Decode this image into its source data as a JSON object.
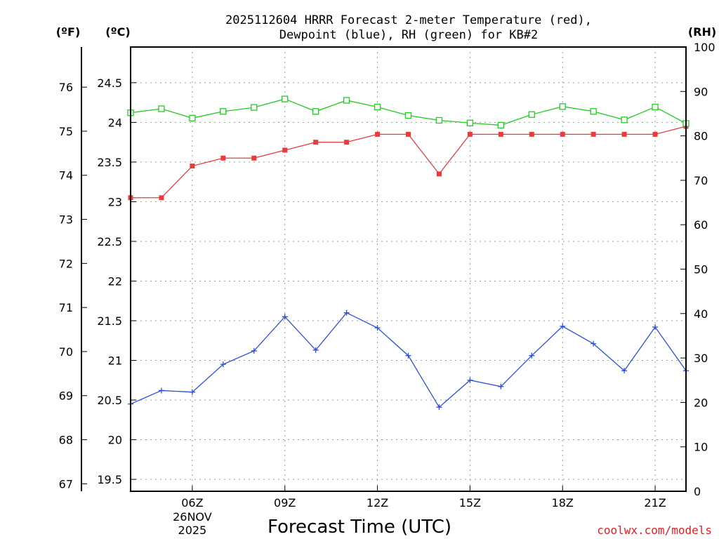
{
  "chart_data": {
    "type": "line",
    "title": "2025112604 HRRR Forecast 2-meter Temperature (red),",
    "subtitle": "Dewpoint (blue), RH (green) for KB#2",
    "xlabel": "Forecast Time (UTC)",
    "units": {
      "fahrenheit": "(ºF)",
      "celsius": "(ºC)",
      "rh": "(RH)"
    },
    "x_hours": [
      4,
      5,
      6,
      7,
      8,
      9,
      10,
      11,
      12,
      13,
      14,
      15,
      16,
      17,
      18,
      19,
      20,
      21,
      22
    ],
    "xlim": [
      4,
      22
    ],
    "x_ticks": [
      {
        "hour": 6,
        "label": "06Z",
        "date": "26NOV",
        "year": "2025"
      },
      {
        "hour": 9,
        "label": "09Z"
      },
      {
        "hour": 12,
        "label": "12Z"
      },
      {
        "hour": 15,
        "label": "15Z"
      },
      {
        "hour": 18,
        "label": "18Z"
      },
      {
        "hour": 21,
        "label": "21Z"
      }
    ],
    "celsius_axis": {
      "ylim": [
        19.35,
        24.95
      ],
      "ticks": [
        "19.5",
        "20",
        "20.5",
        "21",
        "21.5",
        "22",
        "22.5",
        "23",
        "23.5",
        "24",
        "24.5"
      ]
    },
    "fahrenheit_axis": {
      "ticks": [
        "67",
        "68",
        "69",
        "70",
        "71",
        "72",
        "73",
        "74",
        "75",
        "76"
      ]
    },
    "rh_axis": {
      "ylim": [
        0,
        100
      ],
      "ticks": [
        "0",
        "10",
        "20",
        "30",
        "40",
        "50",
        "60",
        "70",
        "80",
        "90",
        "100"
      ]
    },
    "series": [
      {
        "name": "Temperature",
        "axis": "celsius",
        "color": "#e83c3c",
        "marker": "square-filled",
        "values": [
          23.05,
          23.05,
          23.45,
          23.55,
          23.55,
          23.65,
          23.75,
          23.75,
          23.85,
          23.85,
          23.35,
          23.85,
          23.85,
          23.85,
          23.85,
          23.85,
          23.85,
          23.85,
          23.95
        ]
      },
      {
        "name": "Dewpoint",
        "axis": "celsius",
        "color": "#2a4ee0",
        "marker": "plus",
        "values": [
          20.45,
          20.62,
          20.6,
          20.95,
          21.12,
          21.55,
          21.13,
          21.6,
          21.41,
          21.06,
          20.41,
          20.75,
          20.67,
          21.06,
          21.43,
          21.21,
          20.87,
          21.42,
          20.87
        ]
      },
      {
        "name": "RH",
        "axis": "rh",
        "color": "#22cc22",
        "marker": "square-open",
        "values": [
          85.2,
          86.1,
          84.0,
          85.5,
          86.4,
          88.3,
          85.5,
          88.0,
          86.5,
          84.6,
          83.5,
          82.9,
          82.4,
          84.8,
          86.6,
          85.5,
          83.6,
          86.5,
          82.8
        ]
      }
    ],
    "credit": "coolwx.com/models"
  }
}
